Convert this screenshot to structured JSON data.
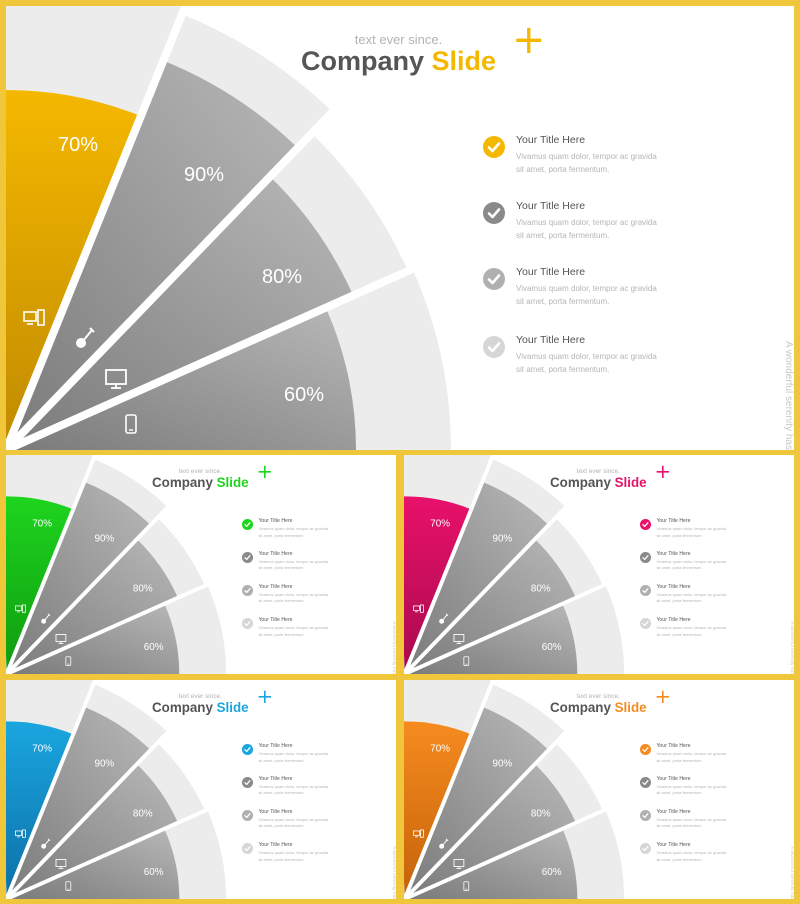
{
  "subtitle": "text ever since.",
  "title_main": "Company",
  "title_accent": "Slide",
  "plus_symbol": "+",
  "side_text": "A wonderful serenity has",
  "segments": [
    {
      "label": "70%",
      "icon": "desktop-computer-icon"
    },
    {
      "label": "90%",
      "icon": "guitar-icon"
    },
    {
      "label": "80%",
      "icon": "monitor-icon"
    },
    {
      "label": "60%",
      "icon": "smartphone-icon"
    }
  ],
  "items": [
    {
      "title": "Your Title Here",
      "body": "Vivamus quam dolor, tempor ac gravida sit amet, porta fermentum."
    },
    {
      "title": "Your Title Here",
      "body": "Vivamus quam dolor, tempor ac gravida sit amet, porta fermentum."
    },
    {
      "title": "Your Title Here",
      "body": "Vivamus quam dolor, tempor ac gravida sit amet, porta fermentum."
    },
    {
      "title": "Your Title Here",
      "body": "Vivamus quam dolor, tempor ac gravida sit amet, porta fermentum."
    }
  ],
  "check_colors": [
    "accent",
    "#8a8a8a",
    "#b0b0b0",
    "#d6d6d6"
  ],
  "colors": {
    "frame": "#f0c63a",
    "title_gray": "#555555"
  },
  "variants": [
    {
      "name": "yellow",
      "accent": "#f5b800",
      "dark": "#c08a00"
    },
    {
      "name": "green",
      "accent": "#1ed51e",
      "dark": "#109a10"
    },
    {
      "name": "pink",
      "accent": "#e8116b",
      "dark": "#a80a4c"
    },
    {
      "name": "blue",
      "accent": "#1aa6e0",
      "dark": "#0d6fa6"
    },
    {
      "name": "orange",
      "accent": "#f68b1f",
      "dark": "#c4620a"
    }
  ]
}
